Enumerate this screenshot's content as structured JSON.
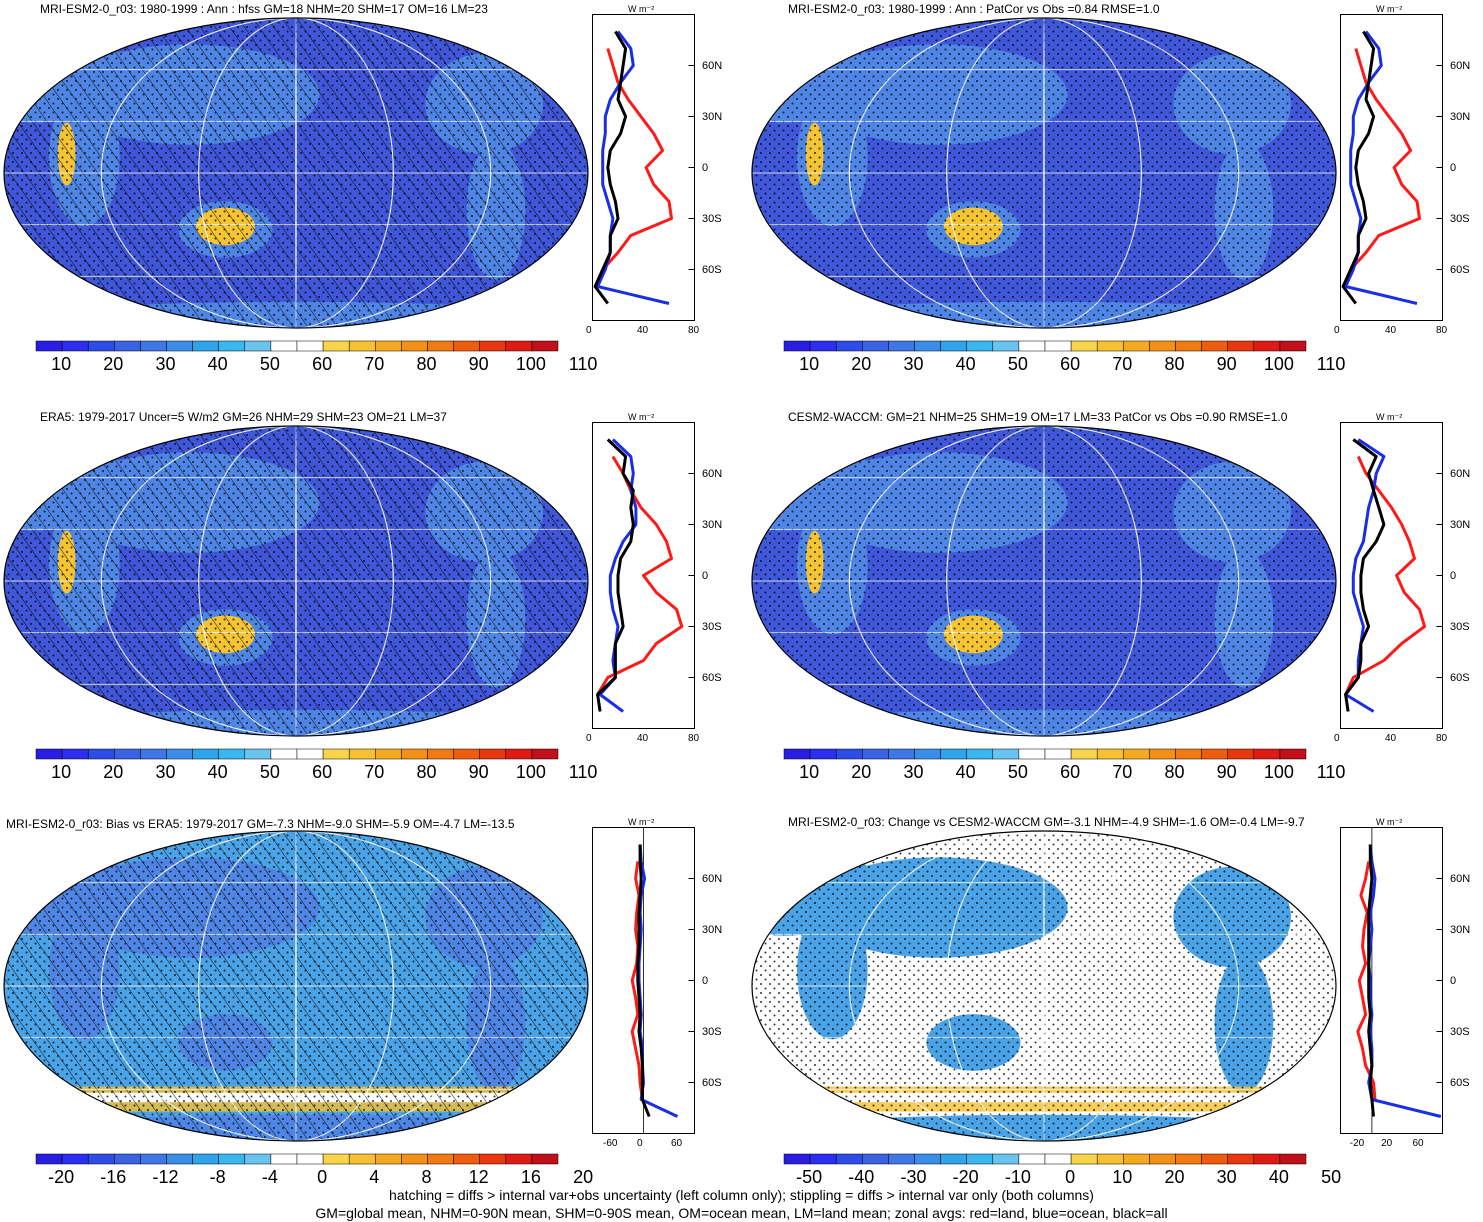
{
  "colors": {
    "ocean": "#3f57d8",
    "ocean_light": "#4f86e6",
    "land_warm": "#f4c433",
    "zonal_land": "#ff1a1a",
    "zonal_ocean": "#1a2ee6",
    "zonal_all": "#000000",
    "diff_white": "#ffffff",
    "diff_blue": "#4aa3e6"
  },
  "abs_colorbar_colors": [
    "#2a1de3",
    "#2d2ff0",
    "#2e4ce6",
    "#3b62e2",
    "#3f78e6",
    "#3a8ee9",
    "#30a4ea",
    "#3ab6ef",
    "#6ac4f0",
    "#ffffff",
    "#ffffff",
    "#f8d44a",
    "#f5c032",
    "#f4aa20",
    "#f39018",
    "#f17a12",
    "#ee5c10",
    "#e9380f",
    "#dd1a14",
    "#c0101a"
  ],
  "diff_colorbar_colors": [
    "#2a1de3",
    "#2d2ff0",
    "#2e4ce6",
    "#3b62e2",
    "#3f78e6",
    "#3a8ee9",
    "#30a4ea",
    "#3ab6ef",
    "#6ac4f0",
    "#ffffff",
    "#ffffff",
    "#f8d44a",
    "#f5c032",
    "#f4aa20",
    "#f39018",
    "#f17a12",
    "#ee5c10",
    "#e9380f",
    "#dd1a14",
    "#c0101a"
  ],
  "panels": [
    {
      "id": "p1",
      "title": "MRI-ESM2-0_r03: 1980-1999 : Ann : hfss GM=18 NHM=20 SHM=17 OM=16 LM=23",
      "map_style": "abs",
      "hatched": true,
      "colorbar_labels": [
        "10",
        "20",
        "30",
        "40",
        "50",
        "60",
        "70",
        "80",
        "90",
        "100",
        "110"
      ],
      "zonal_unit": "W m⁻²",
      "zonal_xticks": [
        "0",
        "40",
        "80"
      ],
      "zonal_xrange": [
        0,
        80
      ],
      "zonal_lat_labels": [
        "60N",
        "30N",
        "0",
        "30S",
        "60S"
      ]
    },
    {
      "id": "p2",
      "title": "MRI-ESM2-0_r03: 1980-1999 : Ann : PatCor vs Obs =0.84 RMSE=1.0",
      "map_style": "abs",
      "hatched": false,
      "colorbar_labels": [
        "10",
        "20",
        "30",
        "40",
        "50",
        "60",
        "70",
        "80",
        "90",
        "100",
        "110"
      ],
      "zonal_unit": "W m⁻²",
      "zonal_xticks": [
        "0",
        "40",
        "80"
      ],
      "zonal_xrange": [
        0,
        80
      ],
      "zonal_lat_labels": [
        "60N",
        "30N",
        "0",
        "30S",
        "60S"
      ]
    },
    {
      "id": "p3",
      "title": "ERA5: 1979-2017 Uncer=5 W/m2 GM=26 NHM=29 SHM=23 OM=21 LM=37",
      "map_style": "abs",
      "hatched": true,
      "colorbar_labels": [
        "10",
        "20",
        "30",
        "40",
        "50",
        "60",
        "70",
        "80",
        "90",
        "100",
        "110"
      ],
      "zonal_unit": "W m⁻²",
      "zonal_xticks": [
        "0",
        "40",
        "80"
      ],
      "zonal_xrange": [
        0,
        80
      ],
      "zonal_lat_labels": [
        "60N",
        "30N",
        "0",
        "30S",
        "60S"
      ]
    },
    {
      "id": "p4",
      "title": "CESM2-WACCM: GM=21 NHM=25 SHM=19 OM=17 LM=33 PatCor vs Obs =0.90 RMSE=1.0",
      "map_style": "abs",
      "hatched": false,
      "colorbar_labels": [
        "10",
        "20",
        "30",
        "40",
        "50",
        "60",
        "70",
        "80",
        "90",
        "100",
        "110"
      ],
      "zonal_unit": "W m⁻²",
      "zonal_xticks": [
        "0",
        "40",
        "80"
      ],
      "zonal_xrange": [
        0,
        80
      ],
      "zonal_lat_labels": [
        "60N",
        "30N",
        "0",
        "30S",
        "60S"
      ]
    },
    {
      "id": "p5",
      "title": "MRI-ESM2-0_r03: Bias vs ERA5: 1979-2017 GM=-7.3 NHM=-9.0 SHM=-5.9 OM=-4.7 LM=-13.5",
      "map_style": "bias",
      "hatched": true,
      "colorbar_labels": [
        "-20",
        "-16",
        "-12",
        "-8",
        "-4",
        "0",
        "4",
        "8",
        "12",
        "16",
        "20"
      ],
      "zonal_unit": "W m⁻²",
      "zonal_xticks": [
        "-60",
        "0",
        "60"
      ],
      "zonal_xrange": [
        -90,
        90
      ],
      "zonal_lat_labels": [
        "60N",
        "30N",
        "0",
        "30S",
        "60S"
      ]
    },
    {
      "id": "p6",
      "title": "MRI-ESM2-0_r03: Change vs CESM2-WACCM GM=-3.1 NHM=-4.9 SHM=-1.6 OM=-0.4 LM=-9.7",
      "map_style": "change",
      "hatched": false,
      "colorbar_labels": [
        "-50",
        "-40",
        "-30",
        "-20",
        "-10",
        "0",
        "10",
        "20",
        "30",
        "40",
        "50"
      ],
      "zonal_unit": "W m⁻²",
      "zonal_xticks": [
        "-20",
        "20",
        "60"
      ],
      "zonal_xrange": [
        -40,
        90
      ],
      "zonal_lat_labels": [
        "60N",
        "30N",
        "0",
        "30S",
        "60S"
      ]
    }
  ],
  "chart_data": [
    {
      "type": "line",
      "panel": "p1",
      "title": "MRI-ESM2-0_r03: 1980-1999 : Ann : hfss GM=18 NHM=20 SHM=17 OM=16 LM=23",
      "xlabel": "W m⁻²",
      "xlim": [
        0,
        80
      ],
      "ylim": [
        -90,
        90
      ],
      "y": [
        80,
        70,
        60,
        50,
        40,
        30,
        20,
        10,
        0,
        -10,
        -20,
        -30,
        -40,
        -50,
        -60,
        -70,
        -80
      ],
      "series": [
        {
          "name": "red=land",
          "values": [
            null,
            12,
            16,
            20,
            28,
            38,
            48,
            55,
            42,
            48,
            60,
            62,
            30,
            20,
            8,
            4,
            null
          ]
        },
        {
          "name": "blue=ocean",
          "values": [
            20,
            30,
            32,
            22,
            14,
            10,
            10,
            8,
            8,
            8,
            12,
            16,
            14,
            14,
            10,
            4,
            60
          ]
        },
        {
          "name": "black=all",
          "values": [
            18,
            26,
            24,
            22,
            20,
            26,
            22,
            14,
            12,
            14,
            18,
            20,
            14,
            14,
            8,
            2,
            12
          ]
        }
      ]
    },
    {
      "type": "line",
      "panel": "p2",
      "title": "MRI-ESM2-0_r03: 1980-1999 : Ann : PatCor vs Obs =0.84 RMSE=1.0",
      "xlabel": "W m⁻²",
      "xlim": [
        0,
        80
      ],
      "ylim": [
        -90,
        90
      ],
      "y": [
        80,
        70,
        60,
        50,
        40,
        30,
        20,
        10,
        0,
        -10,
        -20,
        -30,
        -40,
        -50,
        -60,
        -70,
        -80
      ],
      "series": [
        {
          "name": "red=land",
          "values": [
            null,
            12,
            16,
            20,
            28,
            38,
            48,
            55,
            42,
            48,
            60,
            62,
            30,
            20,
            8,
            4,
            null
          ]
        },
        {
          "name": "blue=ocean",
          "values": [
            20,
            30,
            32,
            22,
            14,
            10,
            10,
            8,
            8,
            8,
            12,
            16,
            14,
            14,
            10,
            4,
            60
          ]
        },
        {
          "name": "black=all",
          "values": [
            18,
            26,
            24,
            22,
            20,
            26,
            22,
            14,
            12,
            14,
            18,
            20,
            14,
            14,
            8,
            2,
            12
          ]
        }
      ]
    },
    {
      "type": "line",
      "panel": "p3",
      "title": "ERA5: 1979-2017 Uncer=5 W/m2 GM=26 NHM=29 SHM=23 OM=21 LM=37",
      "xlabel": "W m⁻²",
      "xlim": [
        0,
        80
      ],
      "ylim": [
        -90,
        90
      ],
      "y": [
        80,
        70,
        60,
        50,
        40,
        30,
        20,
        10,
        0,
        -10,
        -20,
        -30,
        -40,
        -50,
        -60,
        -70,
        -80
      ],
      "series": [
        {
          "name": "red=land",
          "values": [
            null,
            16,
            24,
            30,
            38,
            50,
            58,
            62,
            40,
            50,
            66,
            70,
            50,
            40,
            12,
            4,
            null
          ]
        },
        {
          "name": "blue=ocean",
          "values": [
            16,
            30,
            32,
            30,
            34,
            34,
            24,
            18,
            14,
            14,
            16,
            20,
            18,
            16,
            18,
            6,
            24
          ]
        },
        {
          "name": "black=all",
          "values": [
            12,
            26,
            24,
            32,
            30,
            32,
            30,
            22,
            20,
            20,
            22,
            24,
            18,
            18,
            18,
            4,
            6
          ]
        }
      ]
    },
    {
      "type": "line",
      "panel": "p4",
      "title": "CESM2-WACCM: GM=21 NHM=25 SHM=19 OM=17 LM=33 PatCor vs Obs =0.90 RMSE=1.0",
      "xlabel": "W m⁻²",
      "xlim": [
        0,
        80
      ],
      "ylim": [
        -90,
        90
      ],
      "y": [
        80,
        70,
        60,
        50,
        40,
        30,
        20,
        10,
        0,
        -10,
        -20,
        -30,
        -40,
        -50,
        -60,
        -70,
        -80
      ],
      "series": [
        {
          "name": "red=land",
          "values": [
            null,
            14,
            20,
            30,
            40,
            48,
            54,
            58,
            44,
            50,
            62,
            66,
            48,
            34,
            10,
            4,
            null
          ]
        },
        {
          "name": "blue=ocean",
          "values": [
            14,
            34,
            28,
            26,
            22,
            20,
            18,
            12,
            10,
            10,
            14,
            18,
            16,
            14,
            14,
            4,
            26
          ]
        },
        {
          "name": "black=all",
          "values": [
            10,
            28,
            22,
            26,
            30,
            34,
            28,
            18,
            16,
            16,
            18,
            22,
            16,
            16,
            14,
            4,
            6
          ]
        }
      ]
    },
    {
      "type": "line",
      "panel": "p5",
      "title": "MRI-ESM2-0_r03: Bias vs ERA5: 1979-2017 GM=-7.3 NHM=-9.0 SHM=-5.9 OM=-4.7 LM=-13.5",
      "xlabel": "W m⁻²",
      "xlim": [
        -90,
        90
      ],
      "ylim": [
        -90,
        90
      ],
      "y": [
        80,
        70,
        60,
        50,
        40,
        30,
        20,
        10,
        0,
        -10,
        -20,
        -30,
        -40,
        -50,
        -60,
        -70,
        -80
      ],
      "series": [
        {
          "name": "red=land",
          "values": [
            null,
            -10,
            -14,
            -8,
            -12,
            -14,
            -10,
            -12,
            -20,
            -14,
            -10,
            -20,
            -14,
            -8,
            -6,
            -2,
            null
          ]
        },
        {
          "name": "blue=ocean",
          "values": [
            -6,
            -4,
            2,
            -4,
            -6,
            -4,
            -6,
            -8,
            -8,
            -6,
            -4,
            -6,
            -2,
            -2,
            0,
            -4,
            60
          ]
        },
        {
          "name": "black=all",
          "values": [
            -6,
            -6,
            -4,
            -6,
            -8,
            -8,
            -8,
            -10,
            -10,
            -8,
            -6,
            -8,
            -4,
            -2,
            -2,
            -2,
            10
          ]
        }
      ]
    },
    {
      "type": "line",
      "panel": "p6",
      "title": "MRI-ESM2-0_r03: Change vs CESM2-WACCM GM=-3.1 NHM=-4.9 SHM=-1.6 OM=-0.4 LM=-9.7",
      "xlabel": "W m⁻²",
      "xlim": [
        -40,
        90
      ],
      "ylim": [
        -90,
        90
      ],
      "y": [
        80,
        70,
        60,
        50,
        40,
        30,
        20,
        10,
        0,
        -10,
        -20,
        -30,
        -40,
        -50,
        -60,
        -70,
        -80
      ],
      "series": [
        {
          "name": "red=land",
          "values": [
            null,
            -4,
            -8,
            -14,
            -6,
            -10,
            -12,
            -8,
            -16,
            -12,
            -8,
            -18,
            -12,
            -8,
            2,
            4,
            null
          ]
        },
        {
          "name": "blue=ocean",
          "values": [
            -2,
            0,
            4,
            2,
            -2,
            0,
            -2,
            -4,
            -2,
            -2,
            0,
            -2,
            0,
            0,
            -4,
            0,
            88
          ]
        },
        {
          "name": "black=all",
          "values": [
            -2,
            -2,
            0,
            -2,
            -4,
            -4,
            -4,
            -4,
            -4,
            -4,
            -2,
            -4,
            -2,
            0,
            -2,
            0,
            2
          ]
        }
      ]
    }
  ],
  "footer": {
    "line1": "hatching = diffs > internal var+obs uncertainty (left column only); stippling = diffs > internal var only (both columns)",
    "line2": "GM=global mean, NHM=0-90N mean, SHM=0-90S mean, OM=ocean mean, LM=land mean; zonal avgs: red=land, blue=ocean, black=all"
  }
}
